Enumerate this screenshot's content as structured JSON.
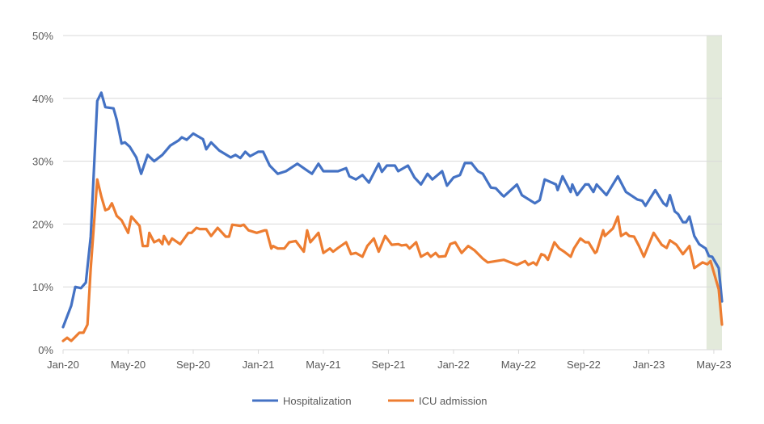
{
  "chart_data": {
    "type": "line",
    "title": "",
    "xlabel": "",
    "ylabel": "",
    "x_ticks": [
      {
        "value": 0,
        "label": "Jan-20"
      },
      {
        "value": 4,
        "label": "May-20"
      },
      {
        "value": 8,
        "label": "Sep-20"
      },
      {
        "value": 12,
        "label": "Jan-21"
      },
      {
        "value": 16,
        "label": "May-21"
      },
      {
        "value": 20,
        "label": "Sep-21"
      },
      {
        "value": 24,
        "label": "Jan-22"
      },
      {
        "value": 28,
        "label": "May-22"
      },
      {
        "value": 32,
        "label": "Sep-22"
      },
      {
        "value": 36,
        "label": "Jan-23"
      },
      {
        "value": 40,
        "label": "May-23"
      }
    ],
    "xlim": [
      0,
      40.5
    ],
    "ylim": [
      0,
      50
    ],
    "y_ticks": [
      {
        "value": 0,
        "label": "0%"
      },
      {
        "value": 10,
        "label": "10%"
      },
      {
        "value": 20,
        "label": "20%"
      },
      {
        "value": 30,
        "label": "30%"
      },
      {
        "value": 40,
        "label": "40%"
      },
      {
        "value": 50,
        "label": "50%"
      }
    ],
    "grid": true,
    "legend_position": "bottom",
    "shaded_range": [
      39.55,
      40.5
    ],
    "shade_color": "#E3EADB",
    "series": [
      {
        "name": "Hospitalization",
        "color": "#4472C4",
        "points": [
          [
            0,
            3.6
          ],
          [
            0.5,
            7
          ],
          [
            0.75,
            10
          ],
          [
            1.1,
            9.8
          ],
          [
            1.4,
            10.7
          ],
          [
            1.7,
            18
          ],
          [
            2.1,
            39.6
          ],
          [
            2.35,
            40.9
          ],
          [
            2.6,
            38.6
          ],
          [
            3.1,
            38.4
          ],
          [
            3.3,
            36.6
          ],
          [
            3.6,
            32.8
          ],
          [
            3.8,
            33
          ],
          [
            4.1,
            32.3
          ],
          [
            4.5,
            30.6
          ],
          [
            4.8,
            28
          ],
          [
            5.2,
            31
          ],
          [
            5.6,
            30
          ],
          [
            6.1,
            31
          ],
          [
            6.6,
            32.5
          ],
          [
            7.1,
            33.3
          ],
          [
            7.3,
            33.8
          ],
          [
            7.6,
            33.4
          ],
          [
            8,
            34.4
          ],
          [
            8.6,
            33.5
          ],
          [
            8.8,
            31.9
          ],
          [
            9.1,
            33
          ],
          [
            9.6,
            31.7
          ],
          [
            10.3,
            30.6
          ],
          [
            10.6,
            31
          ],
          [
            10.9,
            30.5
          ],
          [
            11.2,
            31.5
          ],
          [
            11.5,
            30.8
          ],
          [
            12,
            31.5
          ],
          [
            12.3,
            31.5
          ],
          [
            12.7,
            29.3
          ],
          [
            13.2,
            28.0
          ],
          [
            13.7,
            28.4
          ],
          [
            14.4,
            29.6
          ],
          [
            14.9,
            28.7
          ],
          [
            15.3,
            28.0
          ],
          [
            15.7,
            29.6
          ],
          [
            16.0,
            28.4
          ],
          [
            16.9,
            28.4
          ],
          [
            17.4,
            28.9
          ],
          [
            17.6,
            27.6
          ],
          [
            18.0,
            27.1
          ],
          [
            18.4,
            27.8
          ],
          [
            18.8,
            26.6
          ],
          [
            19.4,
            29.6
          ],
          [
            19.6,
            28.3
          ],
          [
            19.9,
            29.3
          ],
          [
            20.4,
            29.3
          ],
          [
            20.6,
            28.4
          ],
          [
            21.2,
            29.3
          ],
          [
            21.6,
            27.4
          ],
          [
            22.0,
            26.3
          ],
          [
            22.4,
            28.0
          ],
          [
            22.7,
            27.1
          ],
          [
            23.3,
            28.4
          ],
          [
            23.6,
            26.1
          ],
          [
            24.0,
            27.4
          ],
          [
            24.4,
            27.8
          ],
          [
            24.7,
            29.7
          ],
          [
            25.1,
            29.7
          ],
          [
            25.5,
            28.4
          ],
          [
            25.8,
            28.0
          ],
          [
            26.3,
            25.8
          ],
          [
            26.6,
            25.7
          ],
          [
            27.0,
            24.6
          ],
          [
            27.1,
            24.4
          ],
          [
            27.9,
            26.3
          ],
          [
            28.2,
            24.6
          ],
          [
            29.0,
            23.3
          ],
          [
            29.3,
            23.8
          ],
          [
            29.6,
            27.1
          ],
          [
            30.3,
            26.3
          ],
          [
            30.4,
            25.4
          ],
          [
            30.7,
            27.6
          ],
          [
            31.2,
            25.1
          ],
          [
            31.3,
            26.3
          ],
          [
            31.6,
            24.6
          ],
          [
            32.1,
            26.3
          ],
          [
            32.3,
            26.3
          ],
          [
            32.6,
            25.1
          ],
          [
            32.8,
            26.3
          ],
          [
            33.4,
            24.6
          ],
          [
            34.1,
            27.6
          ],
          [
            34.6,
            25.1
          ],
          [
            35.3,
            23.9
          ],
          [
            35.6,
            23.7
          ],
          [
            35.8,
            22.9
          ],
          [
            36.4,
            25.4
          ],
          [
            36.9,
            23.3
          ],
          [
            37.1,
            22.9
          ],
          [
            37.3,
            24.6
          ],
          [
            37.6,
            22.0
          ],
          [
            37.8,
            21.6
          ],
          [
            38.1,
            20.3
          ],
          [
            38.3,
            20.3
          ],
          [
            38.5,
            21.2
          ],
          [
            38.8,
            18.1
          ],
          [
            39.1,
            16.8
          ],
          [
            39.5,
            16.1
          ],
          [
            39.7,
            14.9
          ],
          [
            39.9,
            14.8
          ],
          [
            40.3,
            13.0
          ],
          [
            40.5,
            7.7
          ]
        ]
      },
      {
        "name": "ICU admission",
        "color": "#ED7D31",
        "points": [
          [
            0,
            1.4
          ],
          [
            0.25,
            1.9
          ],
          [
            0.5,
            1.4
          ],
          [
            1.0,
            2.7
          ],
          [
            1.25,
            2.7
          ],
          [
            1.5,
            4.0
          ],
          [
            1.7,
            12.9
          ],
          [
            2.1,
            27.1
          ],
          [
            2.35,
            24.4
          ],
          [
            2.6,
            22.2
          ],
          [
            2.8,
            22.4
          ],
          [
            3.0,
            23.3
          ],
          [
            3.3,
            21.3
          ],
          [
            3.6,
            20.6
          ],
          [
            4.0,
            18.6
          ],
          [
            4.2,
            21.2
          ],
          [
            4.7,
            19.7
          ],
          [
            4.9,
            16.5
          ],
          [
            5.2,
            16.5
          ],
          [
            5.3,
            18.6
          ],
          [
            5.6,
            17.1
          ],
          [
            5.9,
            17.5
          ],
          [
            6.1,
            16.8
          ],
          [
            6.2,
            18.1
          ],
          [
            6.5,
            16.8
          ],
          [
            6.7,
            17.7
          ],
          [
            7.2,
            16.8
          ],
          [
            7.7,
            18.6
          ],
          [
            7.9,
            18.6
          ],
          [
            8.2,
            19.4
          ],
          [
            8.4,
            19.2
          ],
          [
            8.8,
            19.2
          ],
          [
            9.1,
            18.1
          ],
          [
            9.5,
            19.4
          ],
          [
            10.0,
            18.0
          ],
          [
            10.2,
            18.0
          ],
          [
            10.4,
            19.9
          ],
          [
            10.9,
            19.7
          ],
          [
            11.1,
            19.9
          ],
          [
            11.4,
            19.0
          ],
          [
            11.9,
            18.6
          ],
          [
            12.4,
            19.0
          ],
          [
            12.5,
            19.0
          ],
          [
            12.8,
            16.1
          ],
          [
            12.9,
            16.5
          ],
          [
            13.2,
            16.1
          ],
          [
            13.6,
            16.1
          ],
          [
            13.9,
            17.1
          ],
          [
            14.3,
            17.3
          ],
          [
            14.8,
            15.6
          ],
          [
            15.0,
            19.0
          ],
          [
            15.2,
            17.1
          ],
          [
            15.7,
            18.6
          ],
          [
            16.0,
            15.4
          ],
          [
            16.4,
            16.1
          ],
          [
            16.6,
            15.6
          ],
          [
            16.9,
            16.2
          ],
          [
            17.4,
            17.1
          ],
          [
            17.7,
            15.2
          ],
          [
            18.0,
            15.4
          ],
          [
            18.4,
            14.8
          ],
          [
            18.7,
            16.5
          ],
          [
            19.1,
            17.7
          ],
          [
            19.4,
            15.6
          ],
          [
            19.8,
            18.1
          ],
          [
            20.2,
            16.7
          ],
          [
            20.6,
            16.8
          ],
          [
            20.8,
            16.6
          ],
          [
            21.1,
            16.7
          ],
          [
            21.3,
            16.1
          ],
          [
            21.7,
            17.1
          ],
          [
            22.0,
            14.8
          ],
          [
            22.4,
            15.4
          ],
          [
            22.6,
            14.8
          ],
          [
            22.9,
            15.4
          ],
          [
            23.1,
            14.8
          ],
          [
            23.5,
            14.9
          ],
          [
            23.8,
            16.8
          ],
          [
            24.1,
            17.1
          ],
          [
            24.5,
            15.4
          ],
          [
            24.9,
            16.5
          ],
          [
            25.3,
            15.8
          ],
          [
            25.8,
            14.5
          ],
          [
            26.1,
            13.9
          ],
          [
            26.6,
            14.1
          ],
          [
            27.1,
            14.3
          ],
          [
            27.9,
            13.5
          ],
          [
            28.4,
            14.1
          ],
          [
            28.6,
            13.5
          ],
          [
            28.9,
            13.9
          ],
          [
            29.1,
            13.5
          ],
          [
            29.4,
            15.2
          ],
          [
            29.6,
            15.0
          ],
          [
            29.8,
            14.3
          ],
          [
            30.2,
            17.1
          ],
          [
            30.5,
            16.1
          ],
          [
            30.8,
            15.6
          ],
          [
            31.2,
            14.8
          ],
          [
            31.4,
            16.1
          ],
          [
            31.8,
            17.7
          ],
          [
            32.1,
            17.1
          ],
          [
            32.3,
            17.1
          ],
          [
            32.7,
            15.4
          ],
          [
            32.8,
            15.6
          ],
          [
            33.2,
            19.0
          ],
          [
            33.3,
            18.1
          ],
          [
            33.8,
            19.3
          ],
          [
            34.1,
            21.2
          ],
          [
            34.3,
            18.1
          ],
          [
            34.6,
            18.6
          ],
          [
            34.8,
            18.1
          ],
          [
            35.1,
            18.0
          ],
          [
            35.4,
            16.5
          ],
          [
            35.7,
            14.8
          ],
          [
            36.3,
            18.6
          ],
          [
            36.8,
            16.7
          ],
          [
            37.1,
            16.2
          ],
          [
            37.3,
            17.4
          ],
          [
            37.7,
            16.7
          ],
          [
            38.1,
            15.2
          ],
          [
            38.5,
            16.5
          ],
          [
            38.8,
            13.0
          ],
          [
            39.3,
            13.9
          ],
          [
            39.6,
            13.6
          ],
          [
            39.8,
            14.1
          ],
          [
            40.3,
            9.6
          ],
          [
            40.5,
            4.0
          ]
        ]
      }
    ]
  }
}
